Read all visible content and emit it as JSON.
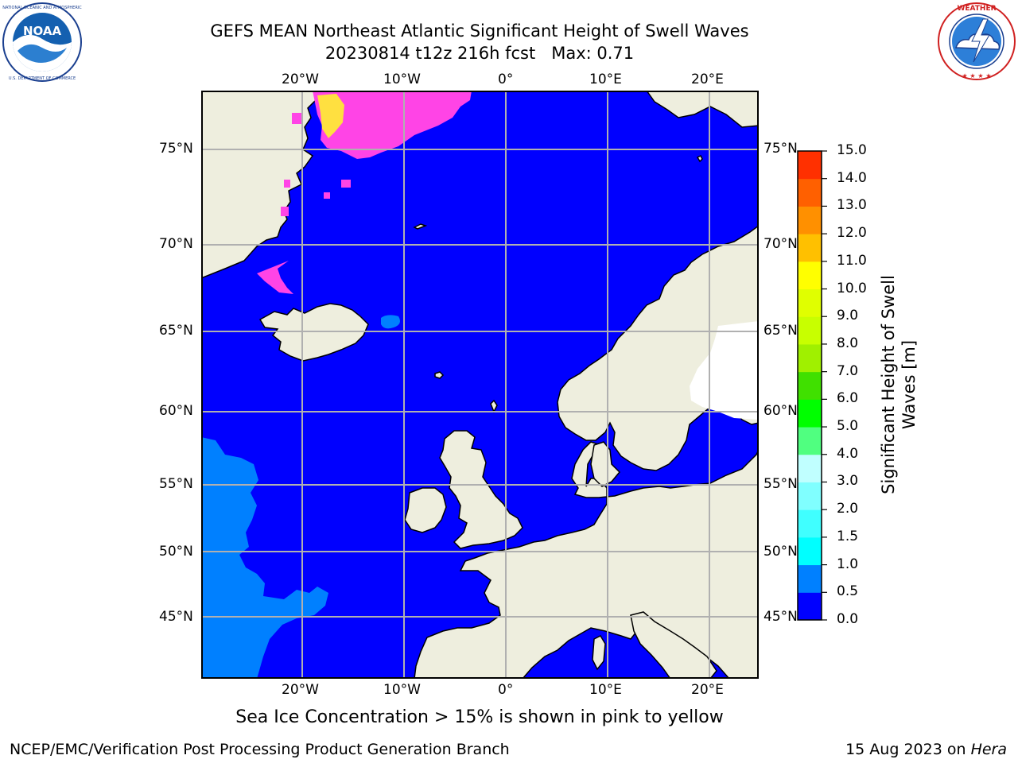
{
  "header": {
    "title": "GEFS MEAN Northeast Atlantic Significant Height of Swell Waves",
    "subtitle": "20230814 t12z 216h fcst   Max: 0.71"
  },
  "logos": {
    "left": {
      "name": "NOAA",
      "ring_text": "NATIONAL OCEANIC AND ATMOSPHERIC ADMINISTRATION · U.S. DEPARTMENT OF COMMERCE"
    },
    "right": {
      "name": "National Weather Service",
      "ring_text": "NATIONAL WEATHER SERVICE"
    }
  },
  "map": {
    "lon_labels_top": [
      "20°W",
      "10°W",
      "0°",
      "10°E",
      "20°E"
    ],
    "lon_labels_bottom": [
      "20°W",
      "10°W",
      "0°",
      "10°E",
      "20°E"
    ],
    "lat_labels_left": [
      "75°N",
      "70°N",
      "65°N",
      "60°N",
      "55°N",
      "50°N",
      "45°N"
    ],
    "lat_labels_right": [
      "75°N",
      "70°N",
      "65°N",
      "60°N",
      "55°N",
      "50°N",
      "45°N"
    ],
    "colors": {
      "ocean": "#0000ff",
      "land": "#eeeede",
      "grid": "#b0b0b0",
      "swell_0_5_to_1_0": "#0080ff",
      "ice_pink": "#ff44e6",
      "ice_yellow": "#ffe040"
    }
  },
  "caption": "Sea Ice Concentration > 15% is shown in pink to yellow",
  "colorbar": {
    "title_line1": "Significant Height of Swell",
    "title_line2": "Waves [m]",
    "ticks": [
      "0.0",
      "0.5",
      "1.0",
      "1.5",
      "2.0",
      "3.0",
      "4.0",
      "5.0",
      "6.0",
      "7.0",
      "8.0",
      "9.0",
      "10.0",
      "11.0",
      "12.0",
      "13.0",
      "14.0",
      "15.0"
    ],
    "colors": [
      "#0000ff",
      "#0080ff",
      "#00ffff",
      "#40ffff",
      "#80ffff",
      "#c0ffff",
      "#50ff80",
      "#00ff00",
      "#40e000",
      "#a0f000",
      "#c8ff00",
      "#e0ff00",
      "#ffff00",
      "#ffc000",
      "#ff9000",
      "#ff6000",
      "#ff3000",
      "#ff0000"
    ]
  },
  "footer": {
    "left": "NCEP/EMC/Verification Post Processing Product Generation Branch",
    "right_prefix": "15 Aug 2023 on ",
    "right_machine": "Hera"
  }
}
